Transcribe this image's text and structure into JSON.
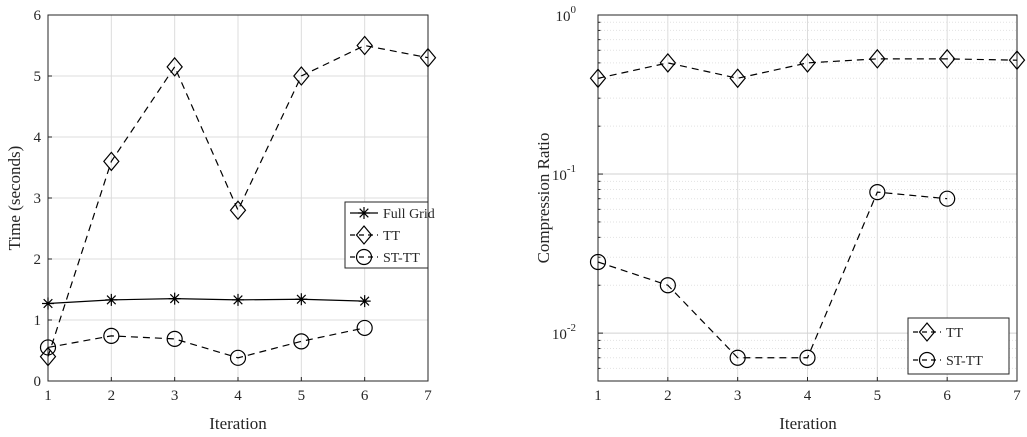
{
  "chart_data": [
    {
      "type": "line",
      "title": "",
      "xlabel": "Iteration",
      "ylabel": "Time (seconds)",
      "xlim": [
        1,
        7
      ],
      "ylim": [
        0,
        6
      ],
      "x_ticks": [
        "1",
        "2",
        "3",
        "4",
        "5",
        "6",
        "7"
      ],
      "y_ticks": [
        "0",
        "1",
        "2",
        "3",
        "4",
        "5",
        "6"
      ],
      "grid": true,
      "legend_position": "upper-right",
      "series": [
        {
          "name": "Full Grid",
          "marker": "asterisk",
          "line": "solid",
          "x": [
            1,
            2,
            3,
            4,
            5,
            6
          ],
          "y": [
            1.27,
            1.33,
            1.35,
            1.33,
            1.34,
            1.31
          ]
        },
        {
          "name": "TT",
          "marker": "diamond",
          "line": "dashed",
          "x": [
            1,
            2,
            3,
            4,
            5,
            6,
            7
          ],
          "y": [
            0.4,
            3.6,
            5.15,
            2.8,
            5.0,
            5.5,
            5.3
          ]
        },
        {
          "name": "ST-TT",
          "marker": "circle",
          "line": "dashed",
          "x": [
            1,
            2,
            3,
            4,
            5,
            6
          ],
          "y": [
            0.55,
            0.74,
            0.69,
            0.38,
            0.65,
            0.87
          ]
        }
      ]
    },
    {
      "type": "line",
      "title": "",
      "xlabel": "Iteration",
      "ylabel": "Compression Ratio",
      "xlim": [
        1,
        7
      ],
      "ylim": [
        0.005,
        1
      ],
      "yscale": "log",
      "x_ticks": [
        "1",
        "2",
        "3",
        "4",
        "5",
        "6",
        "7"
      ],
      "y_ticks": [
        {
          "base": "10",
          "exp": "-2"
        },
        {
          "base": "10",
          "exp": "-1"
        },
        {
          "base": "10",
          "exp": "0"
        }
      ],
      "grid": true,
      "legend_position": "lower-right",
      "series": [
        {
          "name": "TT",
          "marker": "diamond",
          "line": "dashed",
          "x": [
            1,
            2,
            3,
            4,
            5,
            6,
            7
          ],
          "y": [
            0.4,
            0.5,
            0.4,
            0.5,
            0.53,
            0.53,
            0.52
          ]
        },
        {
          "name": "ST-TT",
          "marker": "circle",
          "line": "dashed",
          "x": [
            1,
            2,
            3,
            4,
            5,
            6
          ],
          "y": [
            0.028,
            0.02,
            0.007,
            0.007,
            0.077,
            0.07
          ]
        }
      ]
    }
  ]
}
